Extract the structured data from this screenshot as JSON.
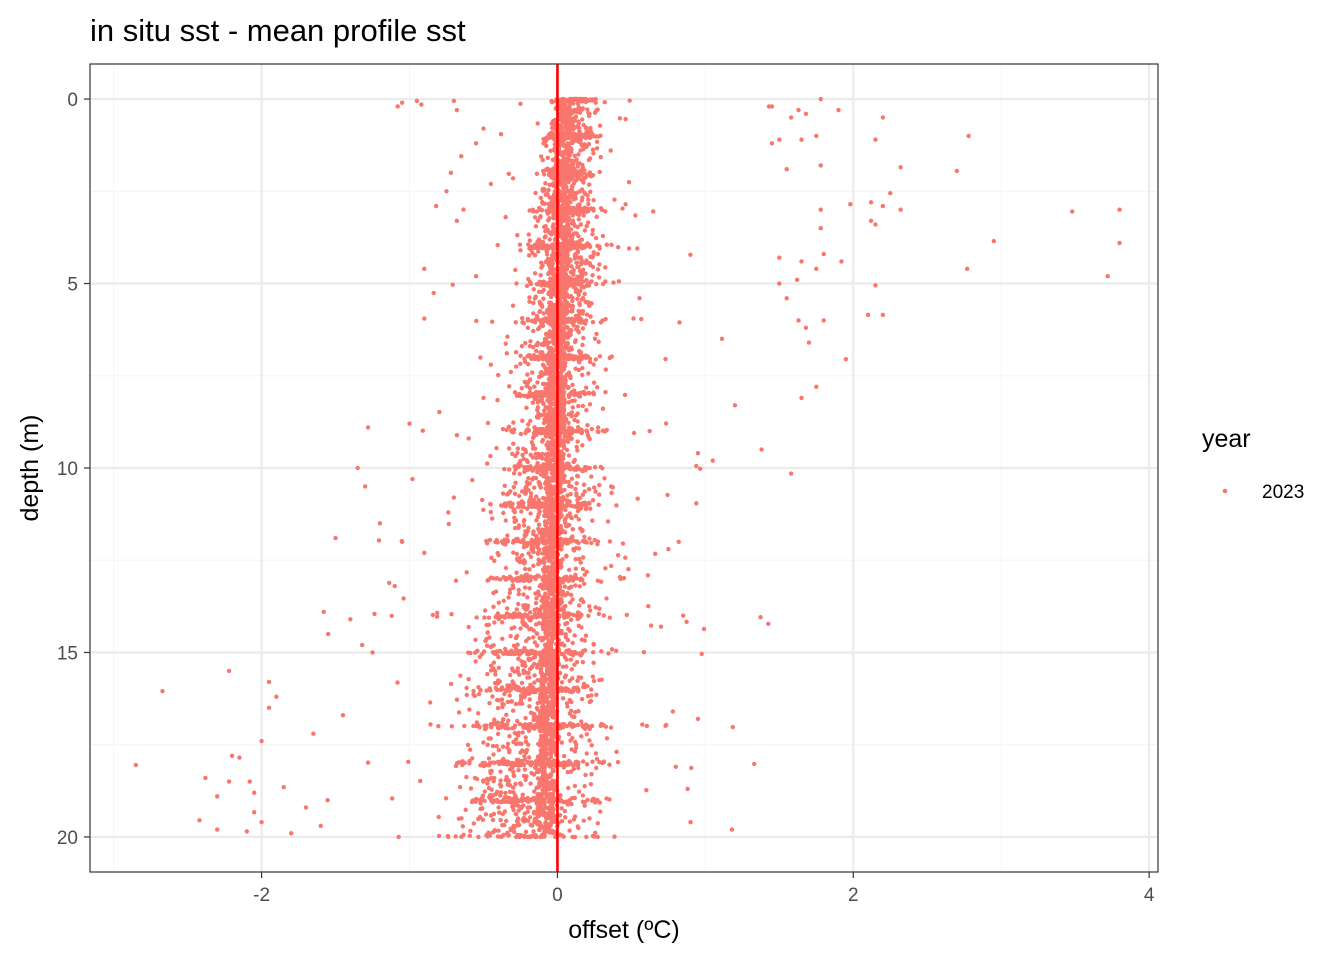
{
  "colors": {
    "point": "#F8766D",
    "zero_line": "#FF0000",
    "grid_major": "#EBEBEB",
    "grid_minor": "#F5F5F5",
    "panel_border": "#333333"
  },
  "chart_data": {
    "type": "scatter",
    "title": "in situ sst - mean profile sst",
    "xlabel": "offset (ºC)",
    "ylabel": "depth (m)",
    "xlim": [
      -3.16,
      4.06
    ],
    "ylim": [
      20.95,
      -0.95
    ],
    "y_reversed": true,
    "grid": true,
    "x_ticks": [
      -2,
      0,
      2,
      4
    ],
    "x_tick_labels": [
      "-2",
      "0",
      "2",
      "4"
    ],
    "y_ticks": [
      0,
      5,
      10,
      15,
      20
    ],
    "y_tick_labels": [
      "0",
      "5",
      "10",
      "15",
      "20"
    ],
    "reference_line": {
      "axis": "x",
      "value": 0
    },
    "legend": {
      "title": "year",
      "position": "right",
      "entries": [
        "2023"
      ]
    },
    "series": [
      {
        "name": "2023",
        "points": [
          [
            1.78,
            0.0
          ],
          [
            1.45,
            0.2
          ],
          [
            1.43,
            0.2
          ],
          [
            1.63,
            0.3
          ],
          [
            1.68,
            0.4
          ],
          [
            1.58,
            0.5
          ],
          [
            1.9,
            0.3
          ],
          [
            2.2,
            0.5
          ],
          [
            2.15,
            1.1
          ],
          [
            2.78,
            1.0
          ],
          [
            2.7,
            1.95
          ],
          [
            2.32,
            1.85
          ],
          [
            1.75,
            1.0
          ],
          [
            1.65,
            1.1
          ],
          [
            1.5,
            1.1
          ],
          [
            1.45,
            1.2
          ],
          [
            1.78,
            1.8
          ],
          [
            1.55,
            1.9
          ],
          [
            1.98,
            2.85
          ],
          [
            2.12,
            2.8
          ],
          [
            2.2,
            2.9
          ],
          [
            2.32,
            3.0
          ],
          [
            2.15,
            3.4
          ],
          [
            2.25,
            2.55
          ],
          [
            2.12,
            3.3
          ],
          [
            1.78,
            3.0
          ],
          [
            1.78,
            3.5
          ],
          [
            1.8,
            4.2
          ],
          [
            1.65,
            4.4
          ],
          [
            1.5,
            4.3
          ],
          [
            1.75,
            4.6
          ],
          [
            1.62,
            4.9
          ],
          [
            1.5,
            5.0
          ],
          [
            1.55,
            5.4
          ],
          [
            1.8,
            6.0
          ],
          [
            1.63,
            6.0
          ],
          [
            1.68,
            6.2
          ],
          [
            1.7,
            6.6
          ],
          [
            3.48,
            3.05
          ],
          [
            3.8,
            3.0
          ],
          [
            3.8,
            3.9
          ],
          [
            3.72,
            4.8
          ],
          [
            2.95,
            3.85
          ],
          [
            2.77,
            4.6
          ],
          [
            1.92,
            4.4
          ],
          [
            2.15,
            5.05
          ],
          [
            2.1,
            5.85
          ],
          [
            2.2,
            5.85
          ],
          [
            1.95,
            7.05
          ],
          [
            1.75,
            7.8
          ],
          [
            1.65,
            8.1
          ],
          [
            1.58,
            10.15
          ],
          [
            1.38,
            9.5
          ],
          [
            1.2,
            8.3
          ],
          [
            0.95,
            9.6
          ],
          [
            1.05,
            9.8
          ],
          [
            1.18,
            19.8
          ],
          [
            0.9,
            19.6
          ],
          [
            0.88,
            18.7
          ],
          [
            0.8,
            18.1
          ],
          [
            0.95,
            16.8
          ],
          [
            0.78,
            16.6
          ],
          [
            0.85,
            14.0
          ],
          [
            0.7,
            14.3
          ],
          [
            0.75,
            12.2
          ],
          [
            0.82,
            12.0
          ],
          [
            -1.05,
            0.1
          ],
          [
            -1.08,
            0.2
          ],
          [
            -0.95,
            0.05
          ],
          [
            -0.92,
            0.15
          ],
          [
            -0.7,
            0.05
          ],
          [
            -0.68,
            0.3
          ],
          [
            -0.55,
            1.2
          ],
          [
            -0.65,
            1.55
          ],
          [
            -0.72,
            2.0
          ],
          [
            -0.75,
            2.5
          ],
          [
            -0.82,
            2.9
          ],
          [
            -0.68,
            3.3
          ],
          [
            -0.9,
            4.6
          ],
          [
            -0.9,
            5.95
          ],
          [
            -1.28,
            8.9
          ],
          [
            -1.0,
            8.8
          ],
          [
            -1.35,
            10.0
          ],
          [
            -1.3,
            10.5
          ],
          [
            -0.98,
            10.3
          ],
          [
            -1.5,
            11.9
          ],
          [
            -1.2,
            11.5
          ],
          [
            -1.05,
            12.0
          ],
          [
            -1.58,
            13.9
          ],
          [
            -1.4,
            14.1
          ],
          [
            -1.55,
            14.5
          ],
          [
            -1.32,
            14.8
          ],
          [
            -2.22,
            15.5
          ],
          [
            -2.67,
            16.05
          ],
          [
            -1.95,
            15.8
          ],
          [
            -1.9,
            16.2
          ],
          [
            -1.95,
            16.5
          ],
          [
            -2.0,
            17.4
          ],
          [
            -2.2,
            17.8
          ],
          [
            -2.15,
            17.85
          ],
          [
            -2.85,
            18.05
          ],
          [
            -2.38,
            18.4
          ],
          [
            -2.22,
            18.5
          ],
          [
            -2.08,
            18.5
          ],
          [
            -1.85,
            18.65
          ],
          [
            -2.05,
            18.8
          ],
          [
            -2.3,
            18.9
          ],
          [
            -1.7,
            19.2
          ],
          [
            -2.42,
            19.55
          ],
          [
            -2.3,
            19.8
          ],
          [
            -2.1,
            19.85
          ],
          [
            -1.8,
            19.9
          ],
          [
            -1.6,
            19.7
          ],
          [
            -2.0,
            19.6
          ],
          [
            -0.5,
            0.8
          ],
          [
            -0.45,
            2.3
          ],
          [
            -0.35,
            3.2
          ],
          [
            -0.25,
            4.1
          ],
          [
            -0.55,
            4.8
          ],
          [
            -0.3,
            5.6
          ],
          [
            -0.2,
            6.2
          ],
          [
            -0.45,
            7.2
          ],
          [
            -0.5,
            8.1
          ],
          [
            -0.6,
            9.2
          ],
          [
            -0.7,
            10.8
          ],
          [
            -0.9,
            12.3
          ],
          [
            -1.1,
            13.2
          ],
          [
            -1.25,
            15.0
          ],
          [
            -1.45,
            16.7
          ],
          [
            -1.65,
            17.2
          ]
        ]
      }
    ]
  }
}
